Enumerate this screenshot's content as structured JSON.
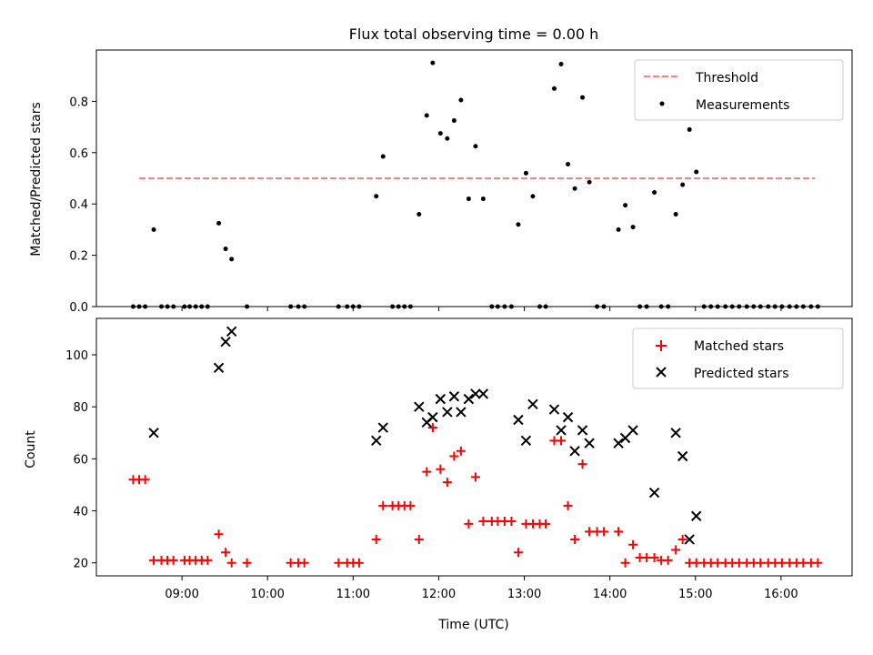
{
  "chart_data": [
    {
      "type": "scatter",
      "title": "Flux total observing time = 0.00 h",
      "xlabel": "",
      "ylabel": "Matched/Predicted stars",
      "ylim": [
        0,
        1.0
      ],
      "yticks": [
        "0.0",
        "0.2",
        "0.4",
        "0.6",
        "0.8"
      ],
      "xlim_hours": [
        8.0,
        16.83
      ],
      "legend_position": "top-right",
      "threshold": {
        "name": "Threshold",
        "value": 0.5,
        "x_range": [
          8.5,
          16.4
        ],
        "color": "#ff7f7f"
      },
      "series": [
        {
          "name": "Measurements",
          "color": "#000000",
          "x": [
            8.43,
            8.5,
            8.57,
            8.67,
            8.76,
            8.83,
            8.9,
            9.03,
            9.09,
            9.16,
            9.23,
            9.3,
            9.43,
            9.51,
            9.58,
            9.76,
            10.27,
            10.36,
            10.43,
            10.83,
            10.93,
            11.0,
            11.07,
            11.27,
            11.35,
            11.46,
            11.53,
            11.6,
            11.67,
            11.77,
            11.86,
            11.93,
            12.02,
            12.1,
            12.18,
            12.26,
            12.35,
            12.43,
            12.52,
            12.62,
            12.69,
            12.77,
            12.85,
            12.93,
            13.02,
            13.1,
            13.18,
            13.25,
            13.35,
            13.43,
            13.51,
            13.59,
            13.68,
            13.76,
            13.85,
            13.93,
            14.1,
            14.18,
            14.27,
            14.35,
            14.43,
            14.52,
            14.6,
            14.68,
            14.77,
            14.85,
            14.93,
            15.01,
            15.1,
            15.18,
            15.26,
            15.35,
            15.43,
            15.51,
            15.6,
            15.68,
            15.76,
            15.85,
            15.93,
            16.01,
            16.1,
            16.18,
            16.26,
            16.35,
            16.43
          ],
          "y": [
            0,
            0,
            0,
            0.3,
            0,
            0,
            0,
            0,
            0,
            0,
            0,
            0,
            0.325,
            0.225,
            0.185,
            0,
            0,
            0,
            0,
            0,
            0,
            0,
            0,
            0.43,
            0.585,
            0,
            0,
            0,
            0,
            0.36,
            0.745,
            0.95,
            0.675,
            0.655,
            0.725,
            0.805,
            0.42,
            0.625,
            0.42,
            0,
            0,
            0,
            0,
            0.32,
            0.52,
            0.43,
            0,
            0,
            0.85,
            0.945,
            0.555,
            0.46,
            0.815,
            0.485,
            0,
            0,
            0.3,
            0.395,
            0.31,
            0,
            0,
            0.445,
            0,
            0,
            0.36,
            0.475,
            0.69,
            0.525,
            0,
            0,
            0,
            0,
            0,
            0,
            0,
            0,
            0,
            0,
            0,
            0,
            0,
            0,
            0,
            0,
            0
          ]
        }
      ]
    },
    {
      "type": "scatter",
      "title": "",
      "xlabel": "Time (UTC)",
      "ylabel": "Count",
      "ylim": [
        15,
        114
      ],
      "yticks": [
        "20",
        "40",
        "60",
        "80",
        "100"
      ],
      "xticks": [
        "09:00",
        "10:00",
        "11:00",
        "12:00",
        "13:00",
        "14:00",
        "15:00",
        "16:00"
      ],
      "xlim_hours": [
        8.0,
        16.83
      ],
      "legend_position": "top-right",
      "series": [
        {
          "name": "Matched stars",
          "color": "#ff0000",
          "marker": "plus",
          "x": [
            8.43,
            8.5,
            8.57,
            8.67,
            8.76,
            8.83,
            8.9,
            9.03,
            9.09,
            9.16,
            9.23,
            9.3,
            9.43,
            9.51,
            9.58,
            9.76,
            10.27,
            10.36,
            10.43,
            10.83,
            10.93,
            11.0,
            11.07,
            11.27,
            11.35,
            11.46,
            11.53,
            11.6,
            11.67,
            11.77,
            11.86,
            11.93,
            12.02,
            12.1,
            12.18,
            12.26,
            12.35,
            12.43,
            12.52,
            12.62,
            12.69,
            12.77,
            12.85,
            12.93,
            13.02,
            13.1,
            13.18,
            13.25,
            13.35,
            13.43,
            13.51,
            13.59,
            13.68,
            13.76,
            13.85,
            13.93,
            14.1,
            14.18,
            14.27,
            14.35,
            14.43,
            14.52,
            14.6,
            14.68,
            14.77,
            14.85,
            14.93,
            15.01,
            15.1,
            15.18,
            15.26,
            15.35,
            15.43,
            15.51,
            15.6,
            15.68,
            15.76,
            15.85,
            15.93,
            16.01,
            16.1,
            16.18,
            16.26,
            16.35,
            16.43
          ],
          "y": [
            52,
            52,
            52,
            21,
            21,
            21,
            21,
            21,
            21,
            21,
            21,
            21,
            31,
            24,
            20,
            20,
            20,
            20,
            20,
            20,
            20,
            20,
            20,
            29,
            42,
            42,
            42,
            42,
            42,
            29,
            55,
            72,
            56,
            51,
            61,
            63,
            35,
            53,
            36,
            36,
            36,
            36,
            36,
            24,
            35,
            35,
            35,
            35,
            67,
            67,
            42,
            29,
            58,
            32,
            32,
            32,
            32,
            20,
            27,
            22,
            22,
            22,
            21,
            21,
            25,
            29,
            20,
            20,
            20,
            20,
            20,
            20,
            20,
            20,
            20,
            20,
            20,
            20,
            20,
            20,
            20,
            20,
            20,
            20,
            20
          ]
        },
        {
          "name": "Predicted stars",
          "color": "#000000",
          "marker": "x",
          "x": [
            8.67,
            9.43,
            9.51,
            9.58,
            11.27,
            11.35,
            11.77,
            11.86,
            11.93,
            12.02,
            12.1,
            12.18,
            12.26,
            12.35,
            12.43,
            12.52,
            12.93,
            13.02,
            13.1,
            13.35,
            13.43,
            13.51,
            13.59,
            13.68,
            13.76,
            14.1,
            14.18,
            14.27,
            14.52,
            14.77,
            14.85,
            14.93,
            15.01
          ],
          "y": [
            70,
            95,
            105,
            109,
            67,
            72,
            80,
            74,
            76,
            83,
            78,
            84,
            78,
            83,
            85,
            85,
            75,
            67,
            81,
            79,
            71,
            76,
            63,
            71,
            66,
            66,
            68,
            71,
            47,
            70,
            61,
            29,
            38
          ]
        }
      ]
    }
  ]
}
